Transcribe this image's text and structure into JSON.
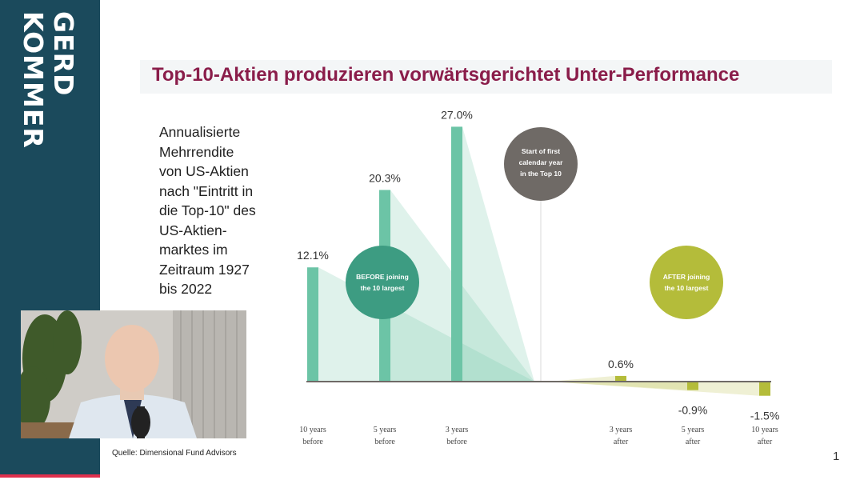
{
  "brand": {
    "line1": "GERD",
    "line2": "KOMMER"
  },
  "title": "Top-10-Aktien produzieren vorwärtsgerichtet Unter-Performance",
  "description": "Annualisierte\nMehrrendite\nvon US-Aktien\nnach \"Eintritt in\ndie Top-10\" des\nUS-Aktien-\nmarktes im\nZeitraum 1927\nbis 2022",
  "source": "Quelle: Dimensional Fund Advisors",
  "page_number": "1",
  "colors": {
    "before": "#6cc4a6",
    "after": "#b4bc3a",
    "gray": "#6f6a66",
    "title": "#8a1d4a",
    "sidebar": "#1b4a5c"
  },
  "circles": {
    "before": {
      "line1": "BEFORE joining",
      "line2": "the 10 largest"
    },
    "start": {
      "line1": "Start of first",
      "line2": "calendar year",
      "line3": "in the Top 10"
    },
    "after": {
      "line1": "AFTER joining",
      "line2": "the 10 largest"
    }
  },
  "chart_data": {
    "type": "bar",
    "categories": [
      {
        "line1": "10 years",
        "line2": "before"
      },
      {
        "line1": "5 years",
        "line2": "before"
      },
      {
        "line1": "3 years",
        "line2": "before"
      },
      {
        "line1": "3 years",
        "line2": "after"
      },
      {
        "line1": "5 years",
        "line2": "after"
      },
      {
        "line1": "10 years",
        "line2": "after"
      }
    ],
    "values": [
      12.1,
      20.3,
      27.0,
      0.6,
      -0.9,
      -1.5
    ],
    "labels": [
      "12.1%",
      "20.3%",
      "27.0%",
      "0.6%",
      "-0.9%",
      "-1.5%"
    ],
    "groups": [
      "before",
      "before",
      "before",
      "after",
      "after",
      "after"
    ],
    "title": "Top-10-Aktien produzieren vorwärtsgerichtet Unter-Performance",
    "xlabel": "",
    "ylabel": "",
    "grid": false
  }
}
